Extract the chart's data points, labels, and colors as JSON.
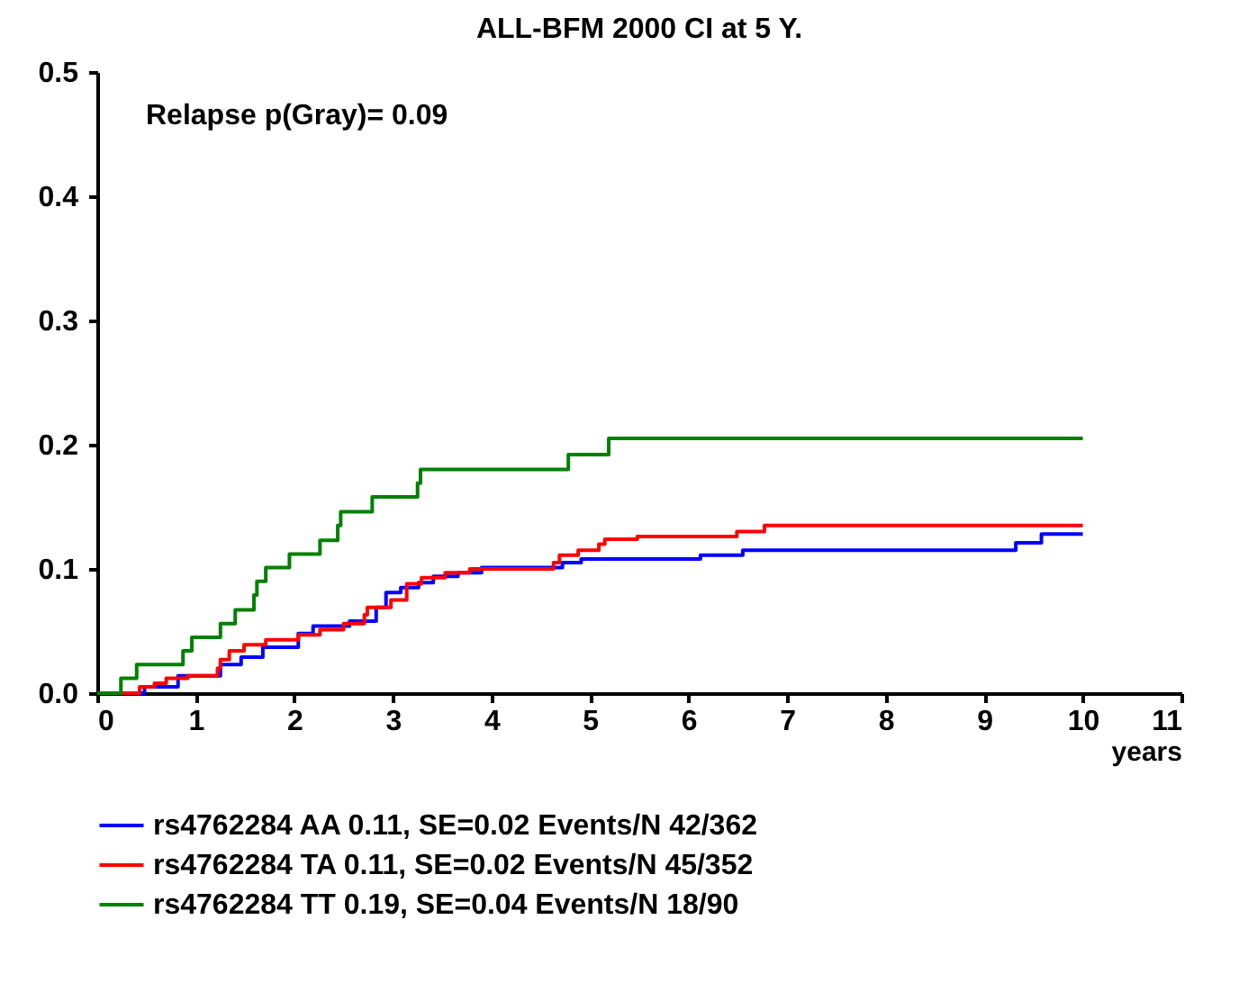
{
  "chart_data": {
    "type": "step",
    "title": "ALL-BFM 2000  CI at 5 Y.",
    "xlabel": "years",
    "annotations": [
      "Relapse    p(Gray)= 0.09"
    ],
    "xlim": [
      0,
      11
    ],
    "xticks": [
      0,
      1,
      2,
      3,
      4,
      5,
      6,
      7,
      8,
      9,
      10,
      11
    ],
    "ylim": [
      0,
      0.5
    ],
    "yticks": [
      {
        "value": 0,
        "label": "0.0"
      },
      0.1,
      0.2,
      0.3,
      0.4,
      0.5
    ],
    "grid": false,
    "legend": "bottom",
    "marker": "none",
    "line_style": "solid",
    "series": [
      {
        "name": "rs4762284 AA 0.11, SE=0.02 Events/N 42/362",
        "color": "#0000ff",
        "x": [
          0,
          0.48,
          0.82,
          1.25,
          1.46,
          1.68,
          2.04,
          2.19,
          2.56,
          2.83,
          2.93,
          3.08,
          3.26,
          3.41,
          3.66,
          3.9,
          4.72,
          4.91,
          6.12,
          6.55,
          9.32,
          9.58,
          10
        ],
        "values": [
          0,
          0.005,
          0.014,
          0.023,
          0.029,
          0.037,
          0.048,
          0.054,
          0.058,
          0.069,
          0.081,
          0.085,
          0.089,
          0.094,
          0.097,
          0.101,
          0.105,
          0.108,
          0.111,
          0.115,
          0.121,
          0.128,
          0.128
        ]
      },
      {
        "name": "rs4762284 TA 0.11, SE=0.02 Events/N 45/352",
        "color": "#ff0000",
        "x": [
          0,
          0.43,
          0.58,
          0.7,
          0.92,
          1.22,
          1.25,
          1.34,
          1.49,
          1.71,
          2.04,
          2.26,
          2.5,
          2.71,
          2.74,
          2.98,
          3.14,
          3.29,
          3.53,
          3.78,
          4.63,
          4.69,
          4.88,
          5.09,
          5.15,
          5.48,
          5.64,
          6.49,
          6.77,
          10
        ],
        "values": [
          0,
          0.005,
          0.008,
          0.012,
          0.014,
          0.02,
          0.027,
          0.034,
          0.039,
          0.043,
          0.047,
          0.051,
          0.056,
          0.063,
          0.069,
          0.075,
          0.088,
          0.093,
          0.097,
          0.1,
          0.105,
          0.111,
          0.115,
          0.12,
          0.124,
          0.126,
          0.126,
          0.13,
          0.135,
          0.135
        ]
      },
      {
        "name": "rs4762284 TT 0.19, SE=0.04 Events/N 18/90",
        "color": "#008000",
        "x": [
          0,
          0.24,
          0.4,
          0.87,
          0.96,
          1.25,
          1.4,
          1.59,
          1.62,
          1.71,
          1.95,
          2.26,
          2.44,
          2.47,
          2.79,
          3.25,
          3.28,
          4.78,
          5.19,
          10
        ],
        "values": [
          0,
          0.012,
          0.023,
          0.034,
          0.045,
          0.056,
          0.067,
          0.079,
          0.09,
          0.101,
          0.112,
          0.123,
          0.135,
          0.146,
          0.158,
          0.169,
          0.18,
          0.192,
          0.205,
          0.205
        ]
      }
    ]
  }
}
